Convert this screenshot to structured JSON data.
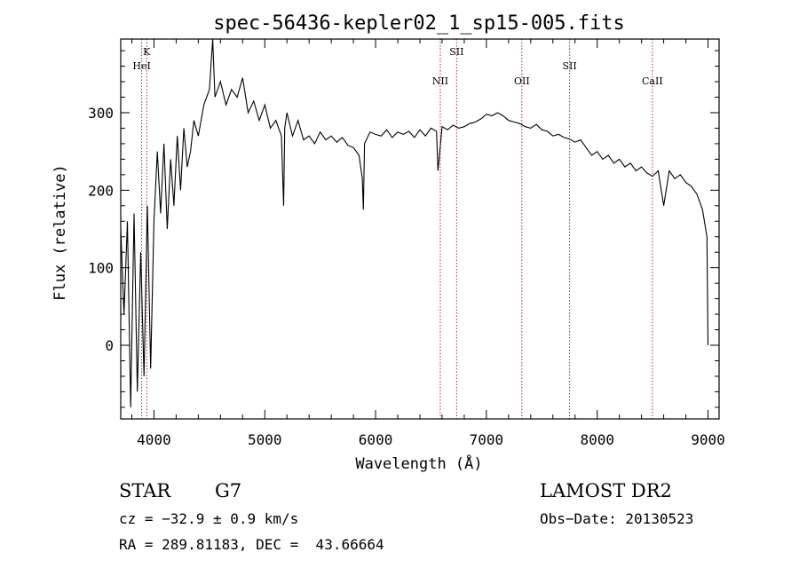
{
  "chart_data": {
    "type": "line",
    "title": "spec-56436-kepler02_1_sp15-005.fits",
    "xlabel": "Wavelength (Å)",
    "ylabel": "Flux (relative)",
    "xlim": [
      3700,
      9100
    ],
    "ylim": [
      -95,
      395
    ],
    "xticks": [
      4000,
      5000,
      6000,
      7000,
      8000,
      9000
    ],
    "yticks": [
      0,
      100,
      200,
      300
    ],
    "grid": false,
    "series": [
      {
        "name": "flux",
        "x": [
          3700,
          3730,
          3760,
          3790,
          3820,
          3850,
          3880,
          3910,
          3940,
          3970,
          4000,
          4030,
          4060,
          4090,
          4120,
          4150,
          4180,
          4210,
          4240,
          4270,
          4300,
          4330,
          4360,
          4400,
          4450,
          4500,
          4530,
          4550,
          4600,
          4650,
          4700,
          4750,
          4800,
          4850,
          4900,
          4950,
          5000,
          5050,
          5100,
          5150,
          5170,
          5180,
          5200,
          5250,
          5300,
          5350,
          5400,
          5450,
          5500,
          5550,
          5600,
          5650,
          5700,
          5750,
          5800,
          5850,
          5880,
          5890,
          5900,
          5950,
          6000,
          6050,
          6100,
          6150,
          6200,
          6250,
          6300,
          6350,
          6400,
          6450,
          6500,
          6550,
          6563,
          6600,
          6650,
          6700,
          6750,
          6800,
          6850,
          6900,
          6950,
          7000,
          7050,
          7100,
          7150,
          7200,
          7250,
          7300,
          7350,
          7400,
          7450,
          7500,
          7550,
          7600,
          7650,
          7700,
          7750,
          7800,
          7850,
          7900,
          7950,
          8000,
          8050,
          8100,
          8150,
          8200,
          8250,
          8300,
          8350,
          8400,
          8450,
          8500,
          8550,
          8600,
          8650,
          8700,
          8750,
          8800,
          8850,
          8900,
          8950,
          8990,
          9000
        ],
        "values": [
          150,
          40,
          160,
          -80,
          170,
          -60,
          120,
          -40,
          180,
          -30,
          160,
          250,
          170,
          260,
          150,
          240,
          180,
          270,
          200,
          280,
          230,
          250,
          290,
          270,
          310,
          330,
          395,
          320,
          340,
          310,
          330,
          320,
          345,
          300,
          315,
          290,
          310,
          280,
          290,
          270,
          180,
          280,
          300,
          270,
          290,
          265,
          270,
          260,
          275,
          265,
          270,
          262,
          268,
          258,
          255,
          245,
          215,
          175,
          260,
          275,
          272,
          270,
          278,
          268,
          275,
          272,
          276,
          268,
          278,
          270,
          280,
          276,
          225,
          282,
          278,
          284,
          280,
          282,
          286,
          288,
          292,
          298,
          296,
          300,
          296,
          290,
          288,
          286,
          282,
          280,
          285,
          278,
          276,
          270,
          272,
          268,
          266,
          262,
          265,
          255,
          245,
          250,
          240,
          245,
          235,
          240,
          230,
          235,
          225,
          230,
          222,
          218,
          225,
          180,
          225,
          215,
          220,
          210,
          205,
          195,
          175,
          140,
          0
        ]
      }
    ],
    "line_markers": [
      {
        "label": "K",
        "x": 3934,
        "level": 1
      },
      {
        "label": "HeI",
        "x": 3889,
        "level": 2
      },
      {
        "label": "SII",
        "x": 6731,
        "level": 1
      },
      {
        "label": "NII",
        "x": 6584,
        "level": 3
      },
      {
        "label": "OII",
        "x": 7320,
        "level": 3
      },
      {
        "label": "SII",
        "x": 7751,
        "level": 2
      },
      {
        "label": "CaII",
        "x": 8498,
        "level": 3
      }
    ],
    "colors": {
      "marker_line": "#b22222",
      "spectrum": "#000000",
      "frame": "#000000"
    }
  },
  "info": {
    "object_type": "STAR",
    "subclass": "G7",
    "survey": "LAMOST DR2",
    "redshift_line": "cz = −32.9 ± 0.9 km/s",
    "obs_date_line": "Obs−Date: 20130523",
    "coords_line": "RA = 289.81183, DEC =  43.66664"
  }
}
